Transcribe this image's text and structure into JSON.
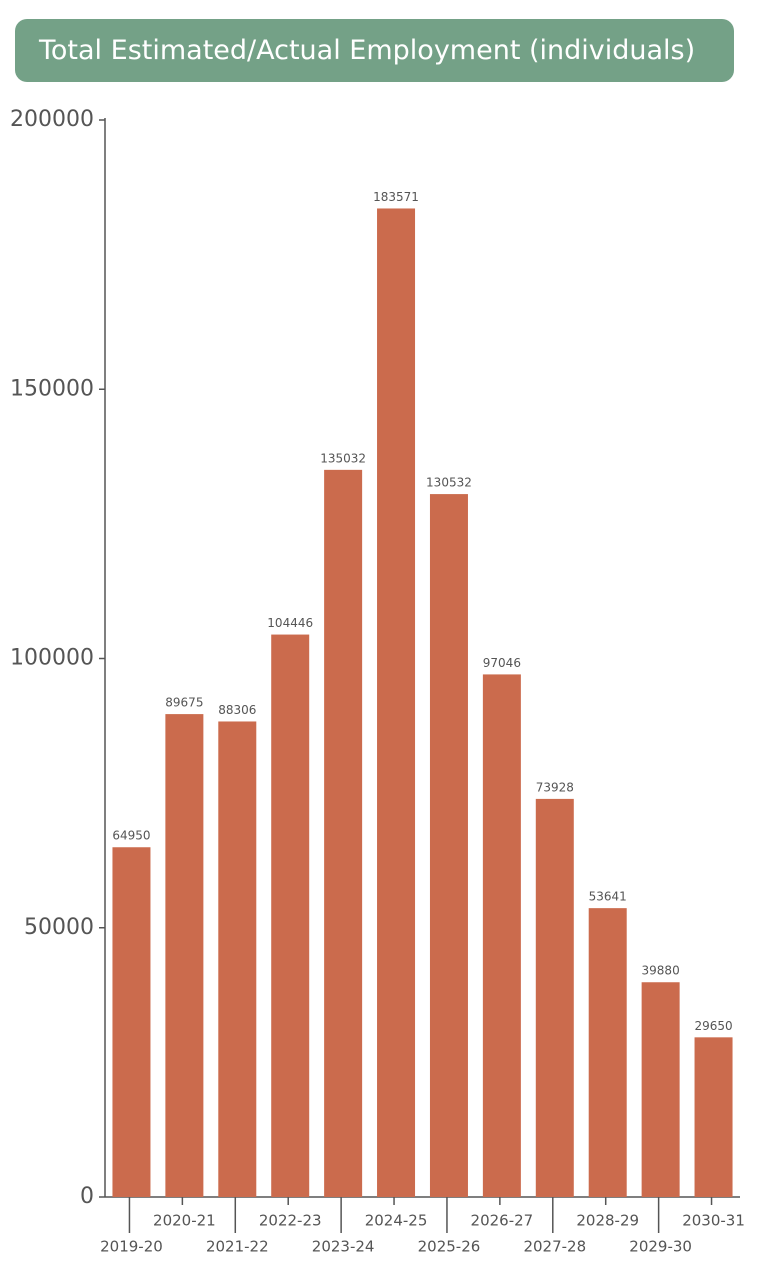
{
  "chart_data": {
    "type": "bar",
    "title": "Total Estimated/Actual Employment (individuals)",
    "categories": [
      "2019-20",
      "2020-21",
      "2021-22",
      "2022-23",
      "2023-24",
      "2024-25",
      "2025-26",
      "2026-27",
      "2027-28",
      "2028-29",
      "2029-30",
      "2030-31"
    ],
    "values": [
      64950,
      89675,
      88306,
      104446,
      135032,
      183571,
      130532,
      97046,
      73928,
      53641,
      39880,
      29650
    ],
    "color": "#cb6b4d",
    "ylim": [
      0,
      200000
    ],
    "yticks": [
      0,
      50000,
      100000,
      150000,
      200000
    ],
    "grid": false
  }
}
